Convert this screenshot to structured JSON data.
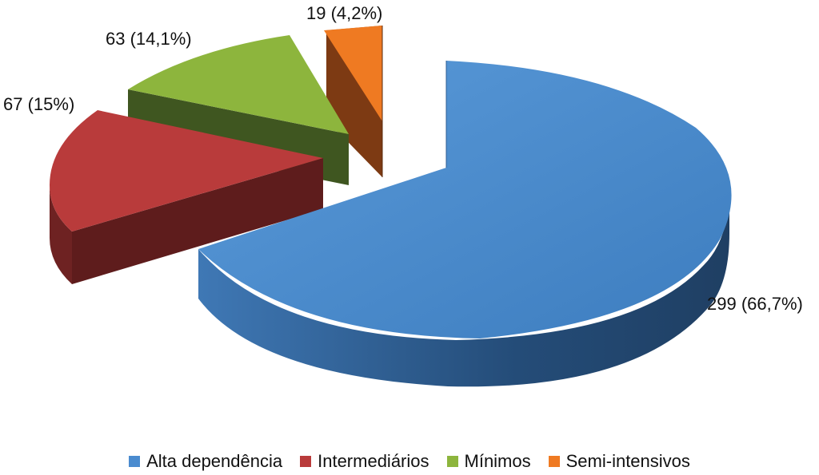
{
  "chart_data": {
    "type": "pie",
    "three_d": true,
    "exploded": true,
    "legend_position": "bottom",
    "slices": [
      {
        "name": "Alta dependência",
        "value": 299,
        "percent_label": "299 (66,7%)",
        "color": "#4a8bcf",
        "side_color": "#2d5e93"
      },
      {
        "name": "Intermediários",
        "value": 67,
        "percent_label": "67 (15%)",
        "color": "#b93b3b",
        "side_color": "#5e1c1c"
      },
      {
        "name": "Mínimos",
        "value": 63,
        "percent_label": "63 (14,1%)",
        "color": "#8db53d",
        "side_color": "#3f5620"
      },
      {
        "name": "Semi-intensivos",
        "value": 19,
        "percent_label": "19 (4,2%)",
        "color": "#ef7a22",
        "side_color": "#7d3a13"
      }
    ]
  }
}
